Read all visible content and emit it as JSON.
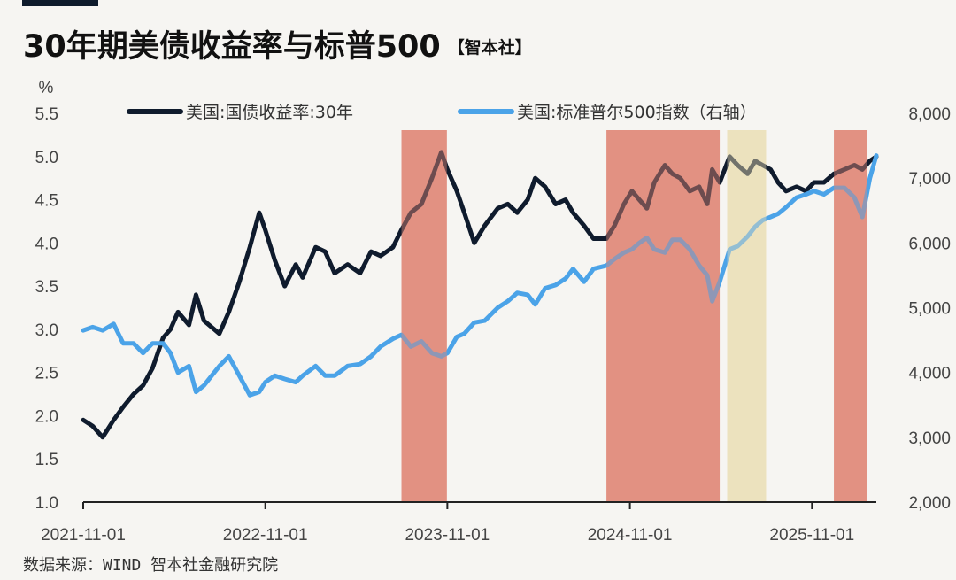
{
  "title": "30年期美债收益率与标普500",
  "title_tag": "【智本社】",
  "source": "数据来源：WIND 智本社金融研究院",
  "chart_data": {
    "type": "line",
    "title": "30年期美债收益率与标普500",
    "y_left_unit": "%",
    "y_left_lim": [
      1.0,
      5.5
    ],
    "y_left_ticks": [
      "1.0",
      "1.5",
      "2.0",
      "2.5",
      "3.0",
      "3.5",
      "4.0",
      "4.5",
      "5.0",
      "5.5"
    ],
    "y_right_lim": [
      2000,
      8000
    ],
    "y_right_ticks": [
      "2,000",
      "3,000",
      "4,000",
      "5,000",
      "6,000",
      "7,000",
      "8,000"
    ],
    "x_lim": [
      "2021-11-01",
      "2026-03-10"
    ],
    "x_ticks": [
      "2021-11-01",
      "2022-11-01",
      "2023-11-01",
      "2024-11-01",
      "2025-11-01"
    ],
    "legend_placement": "top",
    "shaded_periods": [
      {
        "start": "2023-08-01",
        "end": "2023-10-31",
        "color": "#e08a7a"
      },
      {
        "start": "2024-09-15",
        "end": "2025-04-30",
        "color": "#e08a7a"
      },
      {
        "start": "2025-05-15",
        "end": "2025-08-01",
        "color": "#ece0bb"
      },
      {
        "start": "2025-12-15",
        "end": "2026-02-20",
        "color": "#e08a7a"
      }
    ],
    "series": [
      {
        "name": "美国:国债收益率:30年",
        "axis": "left",
        "color": "#0f1b2d",
        "points": [
          [
            "2021-11-01",
            1.95
          ],
          [
            "2021-11-20",
            1.88
          ],
          [
            "2021-12-10",
            1.75
          ],
          [
            "2022-01-01",
            1.95
          ],
          [
            "2022-01-20",
            2.1
          ],
          [
            "2022-02-10",
            2.25
          ],
          [
            "2022-03-01",
            2.35
          ],
          [
            "2022-03-20",
            2.55
          ],
          [
            "2022-04-10",
            2.9
          ],
          [
            "2022-04-25",
            3.0
          ],
          [
            "2022-05-10",
            3.2
          ],
          [
            "2022-06-01",
            3.05
          ],
          [
            "2022-06-15",
            3.4
          ],
          [
            "2022-07-01",
            3.1
          ],
          [
            "2022-08-01",
            2.95
          ],
          [
            "2022-08-20",
            3.2
          ],
          [
            "2022-09-10",
            3.55
          ],
          [
            "2022-10-01",
            3.95
          ],
          [
            "2022-10-20",
            4.35
          ],
          [
            "2022-11-01",
            4.15
          ],
          [
            "2022-11-20",
            3.8
          ],
          [
            "2022-12-10",
            3.5
          ],
          [
            "2023-01-01",
            3.75
          ],
          [
            "2023-01-15",
            3.6
          ],
          [
            "2023-02-10",
            3.95
          ],
          [
            "2023-03-01",
            3.9
          ],
          [
            "2023-03-20",
            3.65
          ],
          [
            "2023-04-15",
            3.75
          ],
          [
            "2023-05-10",
            3.65
          ],
          [
            "2023-06-01",
            3.9
          ],
          [
            "2023-06-20",
            3.85
          ],
          [
            "2023-07-15",
            3.95
          ],
          [
            "2023-08-01",
            4.15
          ],
          [
            "2023-08-20",
            4.35
          ],
          [
            "2023-09-10",
            4.45
          ],
          [
            "2023-10-01",
            4.75
          ],
          [
            "2023-10-20",
            5.05
          ],
          [
            "2023-11-01",
            4.85
          ],
          [
            "2023-11-20",
            4.6
          ],
          [
            "2023-12-05",
            4.35
          ],
          [
            "2023-12-25",
            4.0
          ],
          [
            "2024-01-15",
            4.2
          ],
          [
            "2024-02-10",
            4.4
          ],
          [
            "2024-03-01",
            4.45
          ],
          [
            "2024-03-20",
            4.35
          ],
          [
            "2024-04-10",
            4.5
          ],
          [
            "2024-04-25",
            4.75
          ],
          [
            "2024-05-15",
            4.65
          ],
          [
            "2024-06-05",
            4.45
          ],
          [
            "2024-06-25",
            4.5
          ],
          [
            "2024-07-10",
            4.35
          ],
          [
            "2024-08-01",
            4.2
          ],
          [
            "2024-08-20",
            4.05
          ],
          [
            "2024-09-15",
            4.05
          ],
          [
            "2024-10-01",
            4.2
          ],
          [
            "2024-10-20",
            4.45
          ],
          [
            "2024-11-05",
            4.6
          ],
          [
            "2024-11-20",
            4.5
          ],
          [
            "2024-12-05",
            4.4
          ],
          [
            "2024-12-20",
            4.7
          ],
          [
            "2025-01-10",
            4.9
          ],
          [
            "2025-01-25",
            4.8
          ],
          [
            "2025-02-10",
            4.75
          ],
          [
            "2025-03-01",
            4.6
          ],
          [
            "2025-03-20",
            4.65
          ],
          [
            "2025-04-05",
            4.45
          ],
          [
            "2025-04-15",
            4.85
          ],
          [
            "2025-04-30",
            4.7
          ],
          [
            "2025-05-20",
            5.0
          ],
          [
            "2025-06-05",
            4.9
          ],
          [
            "2025-06-25",
            4.8
          ],
          [
            "2025-07-10",
            4.95
          ],
          [
            "2025-07-25",
            4.9
          ],
          [
            "2025-08-10",
            4.85
          ],
          [
            "2025-08-25",
            4.7
          ],
          [
            "2025-09-10",
            4.6
          ],
          [
            "2025-10-01",
            4.65
          ],
          [
            "2025-10-20",
            4.6
          ],
          [
            "2025-11-05",
            4.7
          ],
          [
            "2025-11-25",
            4.7
          ],
          [
            "2025-12-15",
            4.8
          ],
          [
            "2026-01-05",
            4.85
          ],
          [
            "2026-01-25",
            4.9
          ],
          [
            "2026-02-10",
            4.85
          ],
          [
            "2026-02-25",
            4.95
          ],
          [
            "2026-03-10",
            5.0
          ]
        ]
      },
      {
        "name": "美国:标准普尔500指数（右轴）",
        "axis": "right",
        "color": "#4ba3e8",
        "points": [
          [
            "2021-11-01",
            4650
          ],
          [
            "2021-11-20",
            4700
          ],
          [
            "2021-12-10",
            4650
          ],
          [
            "2022-01-01",
            4750
          ],
          [
            "2022-01-20",
            4450
          ],
          [
            "2022-02-10",
            4450
          ],
          [
            "2022-03-01",
            4300
          ],
          [
            "2022-03-20",
            4450
          ],
          [
            "2022-04-10",
            4450
          ],
          [
            "2022-04-25",
            4300
          ],
          [
            "2022-05-10",
            4000
          ],
          [
            "2022-06-01",
            4100
          ],
          [
            "2022-06-15",
            3700
          ],
          [
            "2022-07-01",
            3800
          ],
          [
            "2022-08-01",
            4100
          ],
          [
            "2022-08-20",
            4250
          ],
          [
            "2022-09-10",
            3950
          ],
          [
            "2022-10-01",
            3650
          ],
          [
            "2022-10-20",
            3700
          ],
          [
            "2022-11-01",
            3850
          ],
          [
            "2022-11-20",
            3950
          ],
          [
            "2022-12-10",
            3900
          ],
          [
            "2023-01-01",
            3850
          ],
          [
            "2023-01-15",
            3950
          ],
          [
            "2023-02-10",
            4100
          ],
          [
            "2023-03-01",
            3950
          ],
          [
            "2023-03-20",
            3950
          ],
          [
            "2023-04-15",
            4100
          ],
          [
            "2023-05-10",
            4130
          ],
          [
            "2023-06-01",
            4250
          ],
          [
            "2023-06-20",
            4400
          ],
          [
            "2023-07-15",
            4520
          ],
          [
            "2023-08-01",
            4580
          ],
          [
            "2023-08-20",
            4400
          ],
          [
            "2023-09-10",
            4480
          ],
          [
            "2023-10-01",
            4300
          ],
          [
            "2023-10-20",
            4250
          ],
          [
            "2023-11-01",
            4300
          ],
          [
            "2023-11-20",
            4550
          ],
          [
            "2023-12-05",
            4600
          ],
          [
            "2023-12-25",
            4770
          ],
          [
            "2024-01-15",
            4800
          ],
          [
            "2024-02-10",
            5000
          ],
          [
            "2024-03-01",
            5100
          ],
          [
            "2024-03-20",
            5230
          ],
          [
            "2024-04-10",
            5200
          ],
          [
            "2024-04-25",
            5050
          ],
          [
            "2024-05-15",
            5300
          ],
          [
            "2024-06-05",
            5350
          ],
          [
            "2024-06-25",
            5450
          ],
          [
            "2024-07-10",
            5600
          ],
          [
            "2024-08-01",
            5400
          ],
          [
            "2024-08-20",
            5600
          ],
          [
            "2024-09-15",
            5650
          ],
          [
            "2024-10-01",
            5750
          ],
          [
            "2024-10-20",
            5850
          ],
          [
            "2024-11-05",
            5900
          ],
          [
            "2024-11-20",
            6000
          ],
          [
            "2024-12-05",
            6080
          ],
          [
            "2024-12-20",
            5900
          ],
          [
            "2025-01-10",
            5850
          ],
          [
            "2025-01-25",
            6050
          ],
          [
            "2025-02-10",
            6050
          ],
          [
            "2025-03-01",
            5900
          ],
          [
            "2025-03-20",
            5650
          ],
          [
            "2025-04-05",
            5500
          ],
          [
            "2025-04-15",
            5100
          ],
          [
            "2025-04-30",
            5400
          ],
          [
            "2025-05-20",
            5900
          ],
          [
            "2025-06-05",
            5950
          ],
          [
            "2025-06-25",
            6100
          ],
          [
            "2025-07-10",
            6250
          ],
          [
            "2025-07-25",
            6350
          ],
          [
            "2025-08-10",
            6400
          ],
          [
            "2025-08-25",
            6450
          ],
          [
            "2025-09-10",
            6550
          ],
          [
            "2025-10-01",
            6700
          ],
          [
            "2025-10-20",
            6750
          ],
          [
            "2025-11-05",
            6800
          ],
          [
            "2025-11-25",
            6750
          ],
          [
            "2025-12-15",
            6850
          ],
          [
            "2026-01-05",
            6850
          ],
          [
            "2026-01-25",
            6700
          ],
          [
            "2026-02-10",
            6400
          ],
          [
            "2026-02-25",
            7000
          ],
          [
            "2026-03-10",
            7350
          ]
        ]
      }
    ]
  }
}
